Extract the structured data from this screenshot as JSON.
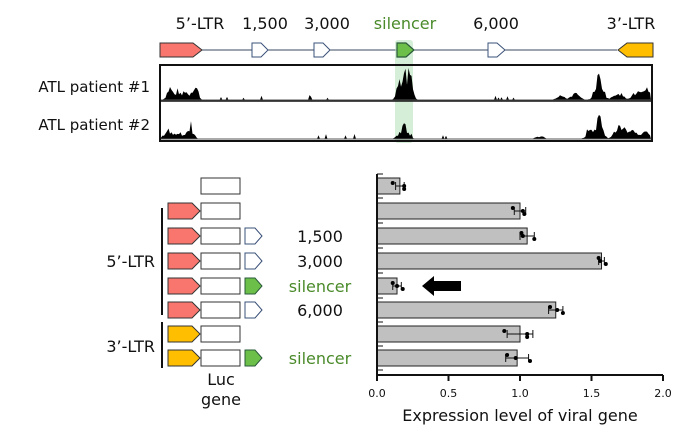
{
  "colors": {
    "ltr5": "#f8766d",
    "ltr3": "#ffbf00",
    "silencer": "#6cc04a",
    "silencer_text": "#4a8a2a",
    "highlight": "#b8e2bd",
    "bar": "#c0c0c0",
    "open_arrow_stroke": "#3a5078"
  },
  "genome_map": {
    "labels": {
      "ltr5": "5’-LTR",
      "p1500": "1,500",
      "p3000": "3,000",
      "silencer": "silencer",
      "p6000": "6,000",
      "ltr3": "3’-LTR"
    },
    "tracks": [
      {
        "label": "ATL patient #1"
      },
      {
        "label": "ATL patient #2"
      }
    ]
  },
  "constructs": {
    "group_labels": {
      "ltr5": "5’-LTR",
      "ltr3": "3’-LTR"
    },
    "luc_label_line1": "Luc",
    "luc_label_line2": "gene",
    "rows": [
      {
        "promoter": "none",
        "insert": "none",
        "label": ""
      },
      {
        "promoter": "ltr5",
        "insert": "none",
        "label": ""
      },
      {
        "promoter": "ltr5",
        "insert": "open",
        "label": "1,500"
      },
      {
        "promoter": "ltr5",
        "insert": "open",
        "label": "3,000"
      },
      {
        "promoter": "ltr5",
        "insert": "silencer",
        "label": "silencer"
      },
      {
        "promoter": "ltr5",
        "insert": "open",
        "label": "6,000"
      },
      {
        "promoter": "ltr3",
        "insert": "none",
        "label": ""
      },
      {
        "promoter": "ltr3",
        "insert": "silencer",
        "label": "silencer"
      }
    ]
  },
  "chart_data": {
    "type": "bar",
    "orientation": "horizontal",
    "title": "",
    "xlabel": "Expression level of viral gene",
    "ylabel": "",
    "xlim": [
      0,
      2.0
    ],
    "xticks": [
      0.0,
      0.5,
      1.0,
      1.5,
      2.0
    ],
    "xtick_labels": [
      "0.0",
      "0.5",
      "1.0",
      "1.5",
      "2.0"
    ],
    "categories": [
      "Luc only",
      "5’-LTR",
      "5’-LTR + 1,500",
      "5’-LTR + 3,000",
      "5’-LTR + silencer",
      "5’-LTR + 6,000",
      "3’-LTR",
      "3’-LTR + silencer"
    ],
    "values": [
      0.16,
      1.0,
      1.05,
      1.57,
      0.14,
      1.25,
      1.0,
      0.98
    ],
    "errors": [
      0.03,
      0.04,
      0.05,
      0.02,
      0.03,
      0.05,
      0.09,
      0.08
    ],
    "points": [
      [
        0.11,
        0.19,
        0.19
      ],
      [
        0.95,
        1.02,
        1.03
      ],
      [
        1.01,
        1.02,
        1.1
      ],
      [
        1.55,
        1.56,
        1.6
      ],
      [
        0.11,
        0.14,
        0.18
      ],
      [
        1.21,
        1.26,
        1.3
      ],
      [
        0.89,
        1.05,
        1.05
      ],
      [
        0.91,
        0.97,
        1.07
      ]
    ],
    "annotation": {
      "type": "arrow",
      "target_index": 4,
      "direction": "left"
    },
    "grid": false
  }
}
